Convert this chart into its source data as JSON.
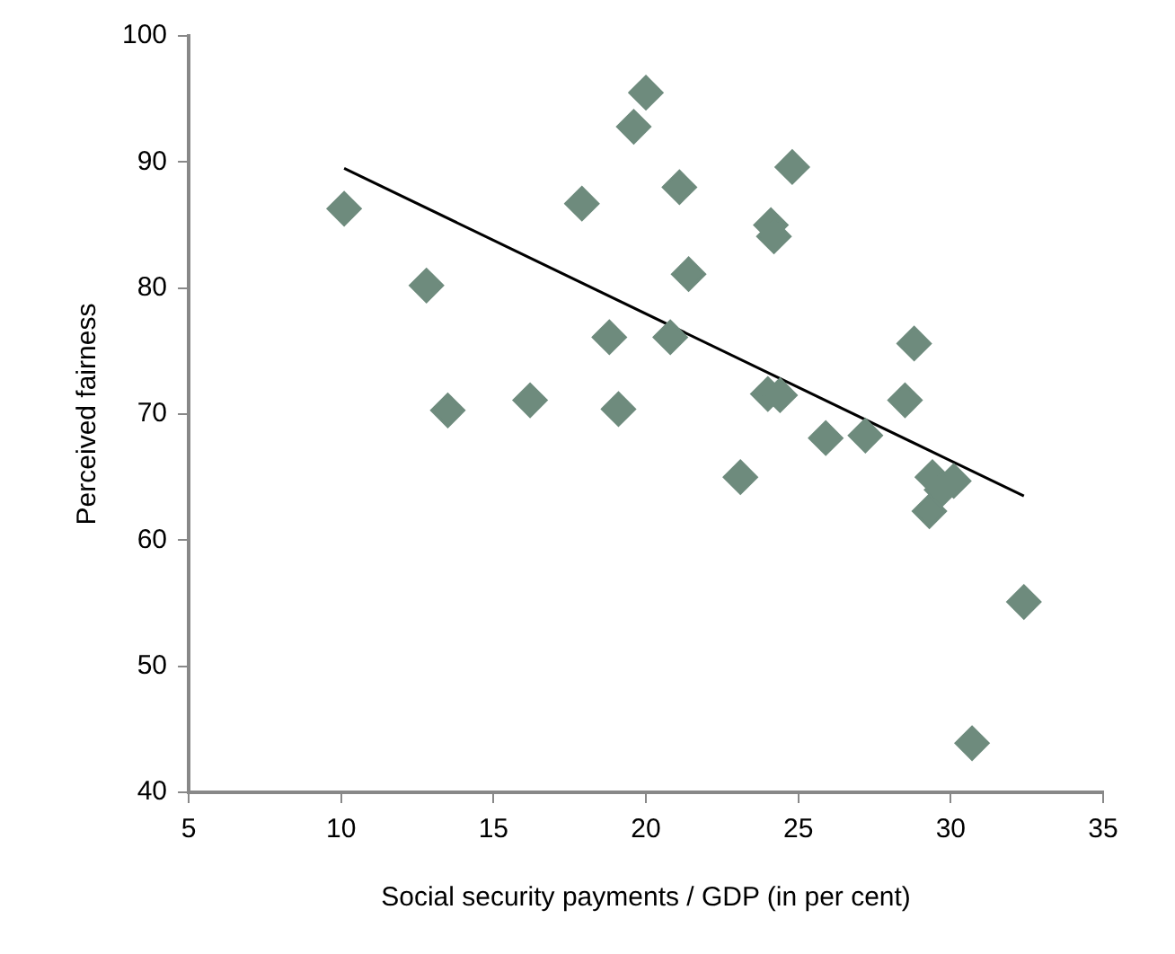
{
  "chart_data": {
    "type": "scatter",
    "xlabel": "Social security payments / GDP (in per cent)",
    "ylabel": "Perceived fairness",
    "xlim": [
      5,
      35
    ],
    "xticks": [
      5,
      10,
      15,
      20,
      25,
      30,
      35
    ],
    "ylim": [
      40,
      100
    ],
    "yticks": [
      40,
      50,
      60,
      70,
      80,
      90,
      100
    ],
    "grid": false,
    "legend": false,
    "marker": "diamond",
    "series": [
      {
        "type": "scatter",
        "color": "#6e8b7d",
        "x": [
          10.1,
          12.8,
          13.5,
          16.2,
          17.9,
          18.8,
          19.1,
          19.6,
          20.0,
          20.8,
          21.1,
          21.4,
          24.8,
          24.1,
          24.2,
          23.1,
          24.0,
          24.4,
          25.9,
          27.2,
          28.8,
          28.5,
          29.4,
          30.1,
          29.7,
          29.3,
          32.4,
          30.7
        ],
        "values": [
          86.3,
          80.2,
          70.3,
          71.1,
          86.7,
          76.1,
          70.4,
          92.8,
          95.5,
          76.1,
          88.0,
          81.1,
          89.6,
          85.0,
          84.1,
          65.0,
          71.6,
          71.5,
          68.1,
          68.3,
          75.6,
          71.1,
          65.0,
          64.7,
          64.0,
          62.3,
          55.1,
          43.9
        ]
      },
      {
        "type": "line",
        "color": "#000000",
        "x": [
          10.1,
          32.4
        ],
        "values": [
          89.5,
          63.5
        ],
        "marker": "none",
        "line_style": "solid"
      }
    ]
  }
}
